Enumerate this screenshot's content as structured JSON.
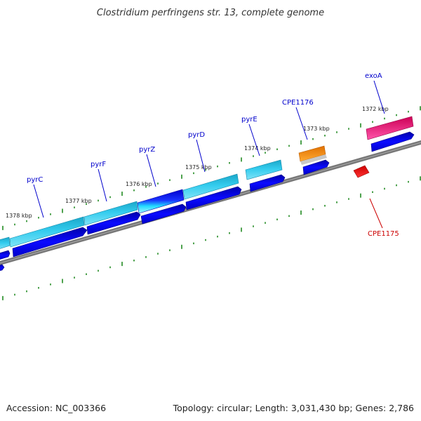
{
  "title": "Clostridium perfringens str. 13, complete genome",
  "footer": {
    "accession": "Accession: NC_003366",
    "summary": "Topology: circular; Length: 3,031,430 bp; Genes: 2,786"
  },
  "colors": {
    "label_blue": "#0000cc",
    "label_red": "#cc0000",
    "backbone": "#808080",
    "tick": "#228b22",
    "gene_cyan": "#22bbdd",
    "gene_blue": "#0000ee",
    "gene_orange": "#ff8800",
    "gene_pink": "#ee1177",
    "gene_red": "#ee0000"
  },
  "kbp_labels": [
    "1378 kbp",
    "1377 kbp",
    "1376 kbp",
    "1375 kbp",
    "1374 kbp",
    "1373 kbp",
    "1372 kbp"
  ],
  "gene_labels": [
    "pyrC",
    "pyrF",
    "pyrZ",
    "pyrD",
    "pyrE",
    "CPE1176",
    "exoA",
    "CPE1175"
  ]
}
